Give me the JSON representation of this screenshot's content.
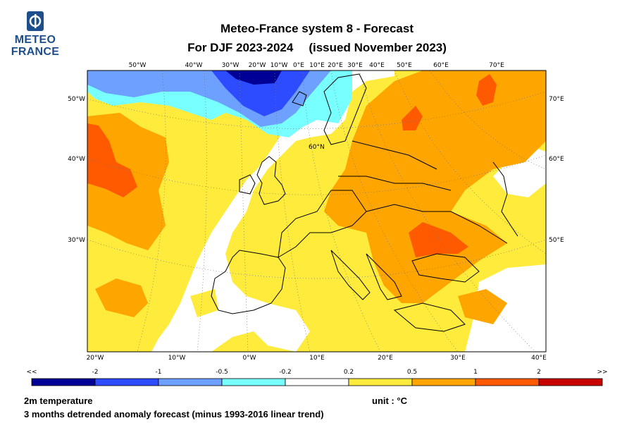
{
  "header": {
    "logo_line1": "METEO",
    "logo_line2": "FRANCE",
    "title_line1": "Meteo-France system 8  -  Forecast",
    "title_line2_period": "For DJF 2023-2024",
    "title_line2_issued": "(issued November 2023)"
  },
  "map": {
    "top_lon_labels": [
      "50°W",
      "40°W",
      "30°W",
      "20°W",
      "10°W",
      "0°E",
      "10°E",
      "20°E",
      "30°E",
      "40°E",
      "50°E",
      "60°E",
      "70°E"
    ],
    "bottom_lon_labels": [
      "20°W",
      "10°W",
      "0°W",
      "10°E",
      "20°E",
      "30°E",
      "40°E"
    ],
    "left_lon_labels": [
      "50°W",
      "40°W",
      "30°W"
    ],
    "right_lon_labels": [
      "70°E",
      "60°E",
      "50°E"
    ],
    "inner_lat_label": "60°N"
  },
  "legend": {
    "ticks": [
      "<<",
      "-2",
      "-1",
      "-0.5",
      "-0.2",
      "0.2",
      "0.5",
      "1",
      "2",
      ">>"
    ],
    "bins": [
      {
        "color": "#000096"
      },
      {
        "color": "#2d4bff"
      },
      {
        "color": "#6ea0ff"
      },
      {
        "color": "#78ffff"
      },
      {
        "color": "#ffffff"
      },
      {
        "color": "#ffeb3c"
      },
      {
        "color": "#ffa500"
      },
      {
        "color": "#ff5a00"
      },
      {
        "color": "#c80000"
      }
    ]
  },
  "footer": {
    "variable": "2m temperature",
    "unit": "unit : °C",
    "description": "3 months detrended anomaly forecast (minus 1993-2016 linear trend)"
  }
}
